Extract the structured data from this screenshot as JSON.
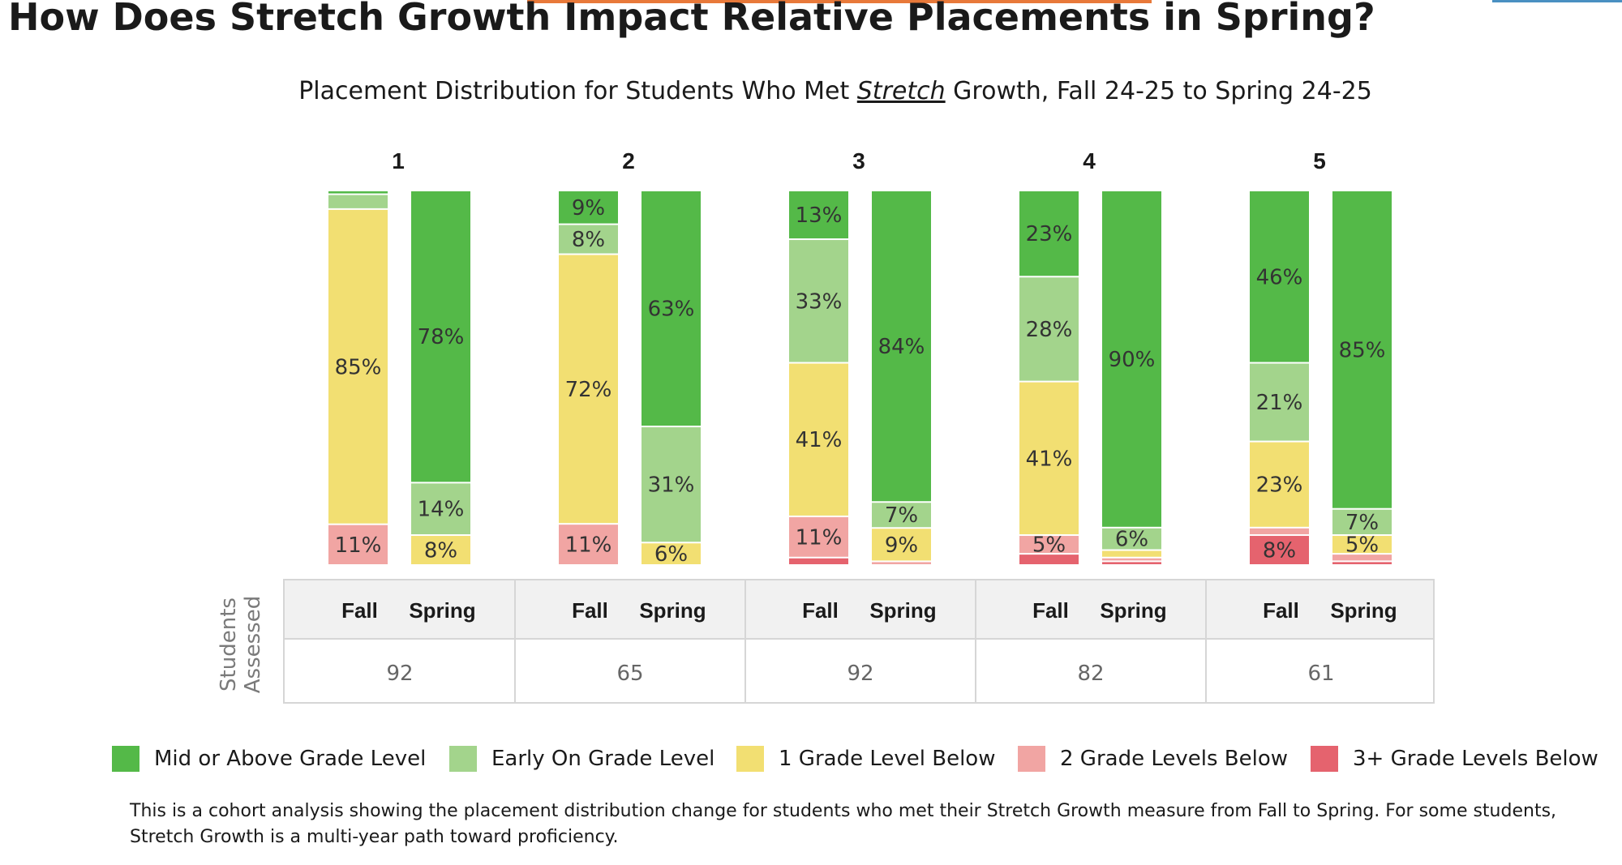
{
  "page": {
    "title": "How Does Stretch Growth Impact Relative Placements in Spring?",
    "subtitle_pre": "Placement Distribution for Students Who Met ",
    "subtitle_em": "Stretch",
    "subtitle_post": " Growth, Fall 24-25 to Spring 24-25",
    "table_row_label": "Students Assessed",
    "footnote": "This is a cohort analysis showing the placement distribution change for students who met their Stretch Growth measure from Fall to Spring. For some students, Stretch Growth is a multi-year path toward proficiency.",
    "accent_colors": [
      "#e8793a",
      "#4a90c2"
    ]
  },
  "chart_data": {
    "type": "bar",
    "stacked": true,
    "normalized": true,
    "title": "Placement Distribution for Students Who Met Stretch Growth, Fall 24-25 to Spring 24-25",
    "categories": [
      "Mid or Above Grade Level",
      "Early On Grade Level",
      "1 Grade Level Below",
      "2 Grade Levels Below",
      "3+ Grade Levels Below"
    ],
    "colors": [
      "#54b948",
      "#a3d48c",
      "#f2df72",
      "#f1a5a3",
      "#e5636e"
    ],
    "groups": [
      {
        "label": "1",
        "students_assessed": "92",
        "bars": [
          {
            "label": "Fall",
            "values": [
              1,
              4,
              85,
              11,
              0
            ],
            "labels": [
              "",
              "",
              "85%",
              "11%",
              ""
            ]
          },
          {
            "label": "Spring",
            "values": [
              78,
              14,
              8,
              0,
              0
            ],
            "labels": [
              "78%",
              "14%",
              "8%",
              "",
              ""
            ]
          }
        ]
      },
      {
        "label": "2",
        "students_assessed": "65",
        "bars": [
          {
            "label": "Fall",
            "values": [
              9,
              8,
              72,
              11,
              0
            ],
            "labels": [
              "9%",
              "8%",
              "72%",
              "11%",
              ""
            ]
          },
          {
            "label": "Spring",
            "values": [
              63,
              31,
              6,
              0,
              0
            ],
            "labels": [
              "63%",
              "31%",
              "6%",
              "",
              ""
            ]
          }
        ]
      },
      {
        "label": "3",
        "students_assessed": "92",
        "bars": [
          {
            "label": "Fall",
            "values": [
              13,
              33,
              41,
              11,
              2
            ],
            "labels": [
              "13%",
              "33%",
              "41%",
              "11%",
              ""
            ]
          },
          {
            "label": "Spring",
            "values": [
              84,
              7,
              9,
              1,
              0
            ],
            "labels": [
              "84%",
              "7%",
              "9%",
              "",
              ""
            ]
          }
        ]
      },
      {
        "label": "4",
        "students_assessed": "82",
        "bars": [
          {
            "label": "Fall",
            "values": [
              23,
              28,
              41,
              5,
              3
            ],
            "labels": [
              "23%",
              "28%",
              "41%",
              "5%",
              ""
            ]
          },
          {
            "label": "Spring",
            "values": [
              90,
              6,
              2,
              1,
              1
            ],
            "labels": [
              "90%",
              "6%",
              "",
              "",
              ""
            ]
          }
        ]
      },
      {
        "label": "5",
        "students_assessed": "61",
        "bars": [
          {
            "label": "Fall",
            "values": [
              46,
              21,
              23,
              2,
              8
            ],
            "labels": [
              "46%",
              "21%",
              "23%",
              "",
              "8%"
            ]
          },
          {
            "label": "Spring",
            "values": [
              85,
              7,
              5,
              2,
              1
            ],
            "labels": [
              "85%",
              "7%",
              "5%",
              "",
              ""
            ]
          }
        ]
      }
    ],
    "ylim": [
      0,
      100
    ],
    "legend_position": "bottom"
  }
}
